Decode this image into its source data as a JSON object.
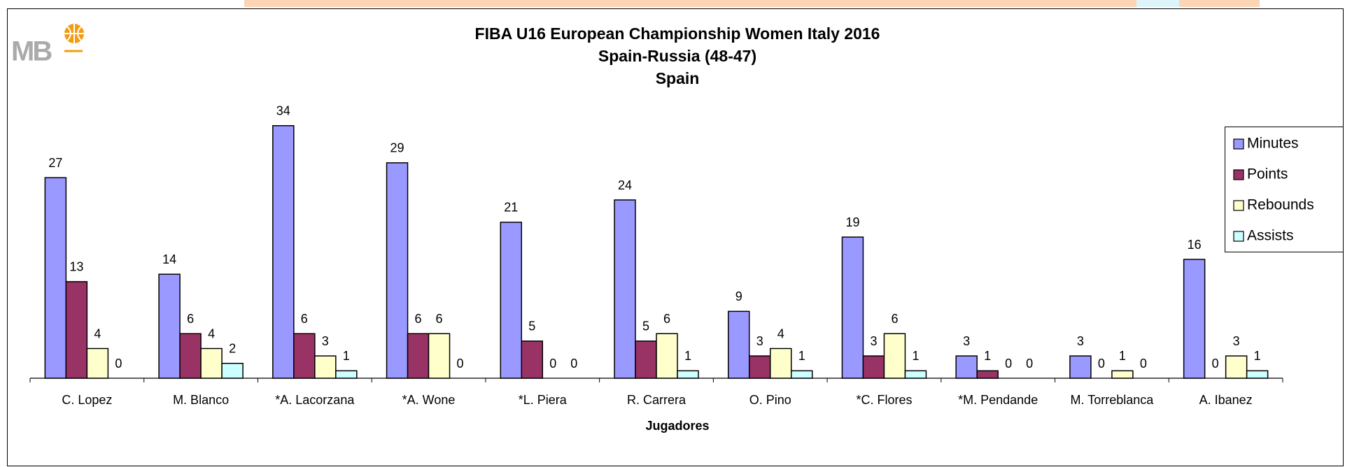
{
  "logo": "MB",
  "chart_data": {
    "type": "bar",
    "title": "FIBA U16 European Championship Women Italy 2016",
    "subtitle": "Spain-Russia (48-47)",
    "team": "Spain",
    "x_label": "Jugadores",
    "categories": [
      "C. Lopez",
      "M. Blanco",
      "*A. Lacorzana",
      "*A. Wone",
      "*L. Piera",
      "R. Carrera",
      "O. Pino",
      "*C. Flores",
      "*M. Pendande",
      "M. Torreblanca",
      "A. Ibanez"
    ],
    "series": [
      {
        "name": "Minutes",
        "color": "#9999ff",
        "values": [
          27,
          14,
          34,
          29,
          21,
          24,
          9,
          19,
          3,
          3,
          16
        ]
      },
      {
        "name": "Points",
        "color": "#993366",
        "values": [
          13,
          6,
          6,
          6,
          5,
          5,
          3,
          3,
          1,
          0,
          0
        ]
      },
      {
        "name": "Rebounds",
        "color": "#ffffcc",
        "values": [
          4,
          4,
          3,
          6,
          0,
          6,
          4,
          6,
          0,
          1,
          3
        ]
      },
      {
        "name": "Assists",
        "color": "#ccffff",
        "values": [
          0,
          2,
          1,
          0,
          0,
          1,
          1,
          1,
          0,
          0,
          1
        ]
      }
    ],
    "ylim": [
      0,
      40
    ],
    "legend": "right"
  }
}
